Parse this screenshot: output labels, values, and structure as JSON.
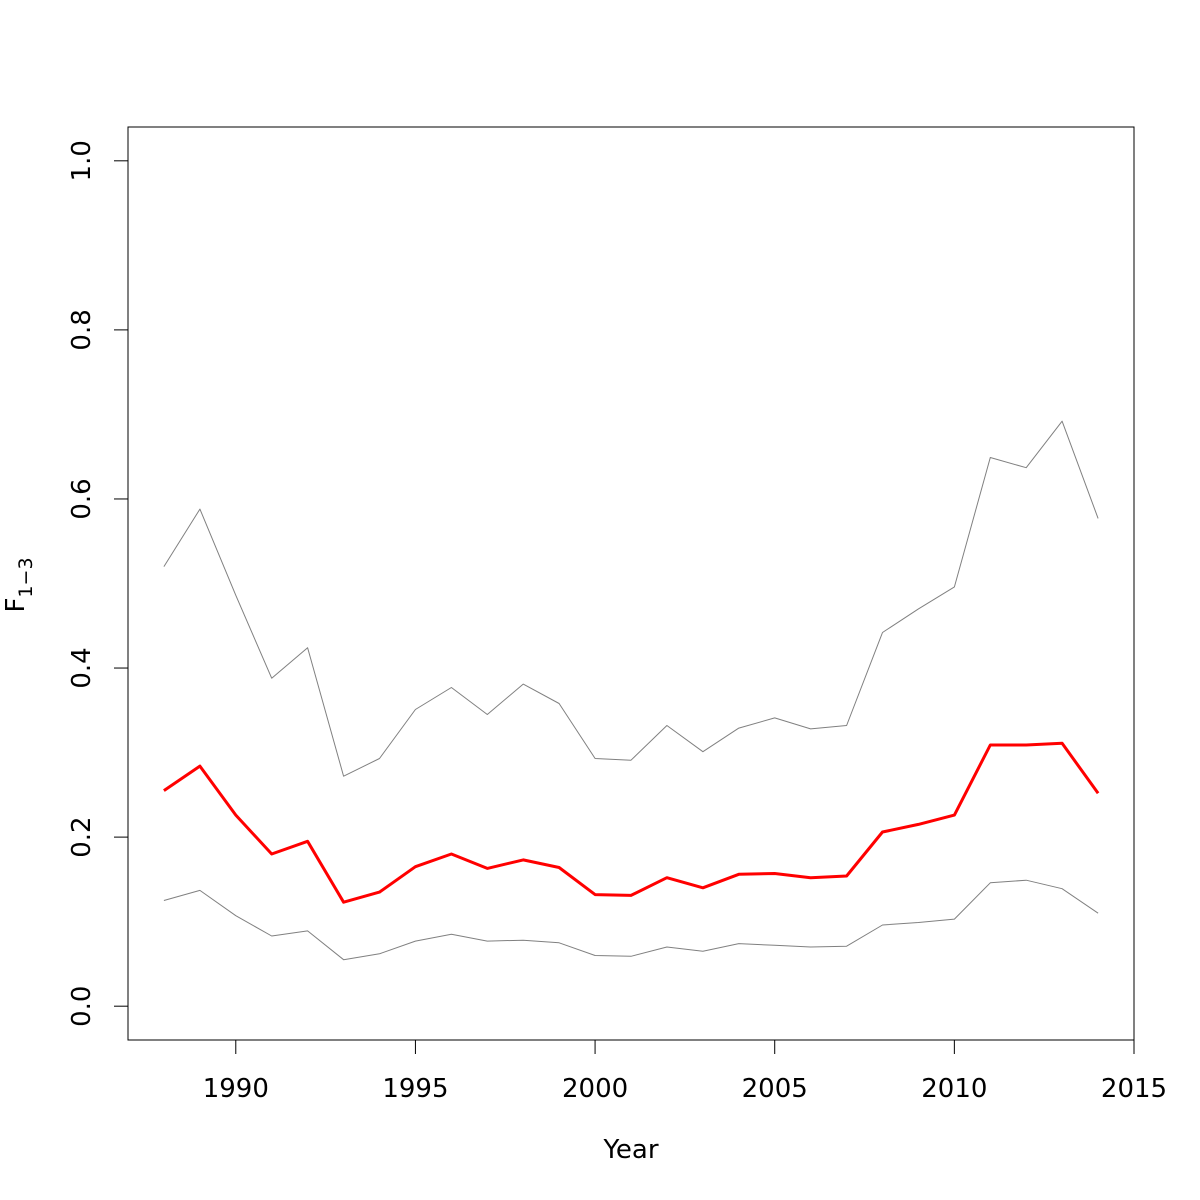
{
  "chart_data": {
    "type": "line",
    "title": "",
    "xlabel": "Year",
    "ylabel": "F",
    "ylabel_subscript": "1−3",
    "xlim": [
      1987,
      2015
    ],
    "ylim": [
      -0.04,
      1.04
    ],
    "x_ticks": [
      1990,
      1995,
      2000,
      2005,
      2010,
      2015
    ],
    "x_tick_labels": [
      "1990",
      "1995",
      "2000",
      "2005",
      "2010",
      "2015"
    ],
    "y_ticks": [
      0.0,
      0.2,
      0.4,
      0.6,
      0.8,
      1.0
    ],
    "y_tick_labels": [
      "0.0",
      "0.2",
      "0.4",
      "0.6",
      "0.8",
      "1.0"
    ],
    "grid": false,
    "x": [
      1988,
      1989,
      1990,
      1991,
      1992,
      1993,
      1994,
      1995,
      1996,
      1997,
      1998,
      1999,
      2000,
      2001,
      2002,
      2003,
      2004,
      2005,
      2006,
      2007,
      2008,
      2009,
      2010,
      2011,
      2012,
      2013,
      2014
    ],
    "series": [
      {
        "color": "#ff0000",
        "width": 3,
        "values": [
          0.255,
          0.284,
          0.226,
          0.18,
          0.195,
          0.123,
          0.135,
          0.165,
          0.18,
          0.163,
          0.173,
          0.164,
          0.132,
          0.131,
          0.152,
          0.14,
          0.156,
          0.157,
          0.152,
          0.154,
          0.206,
          0.215,
          0.226,
          0.309,
          0.309,
          0.311,
          0.252
        ]
      },
      {
        "color": "#808080",
        "width": 1,
        "values": [
          0.52,
          0.588,
          0.486,
          0.388,
          0.424,
          0.272,
          0.293,
          0.351,
          0.377,
          0.345,
          0.381,
          0.358,
          0.293,
          0.291,
          0.332,
          0.301,
          0.329,
          0.341,
          0.328,
          0.332,
          0.442,
          0.47,
          0.496,
          0.649,
          0.637,
          0.692,
          0.577
        ]
      },
      {
        "color": "#808080",
        "width": 1,
        "values": [
          0.125,
          0.137,
          0.107,
          0.083,
          0.089,
          0.055,
          0.062,
          0.077,
          0.085,
          0.077,
          0.078,
          0.075,
          0.06,
          0.059,
          0.07,
          0.065,
          0.074,
          0.072,
          0.07,
          0.071,
          0.096,
          0.099,
          0.103,
          0.146,
          0.149,
          0.139,
          0.11
        ]
      }
    ]
  }
}
